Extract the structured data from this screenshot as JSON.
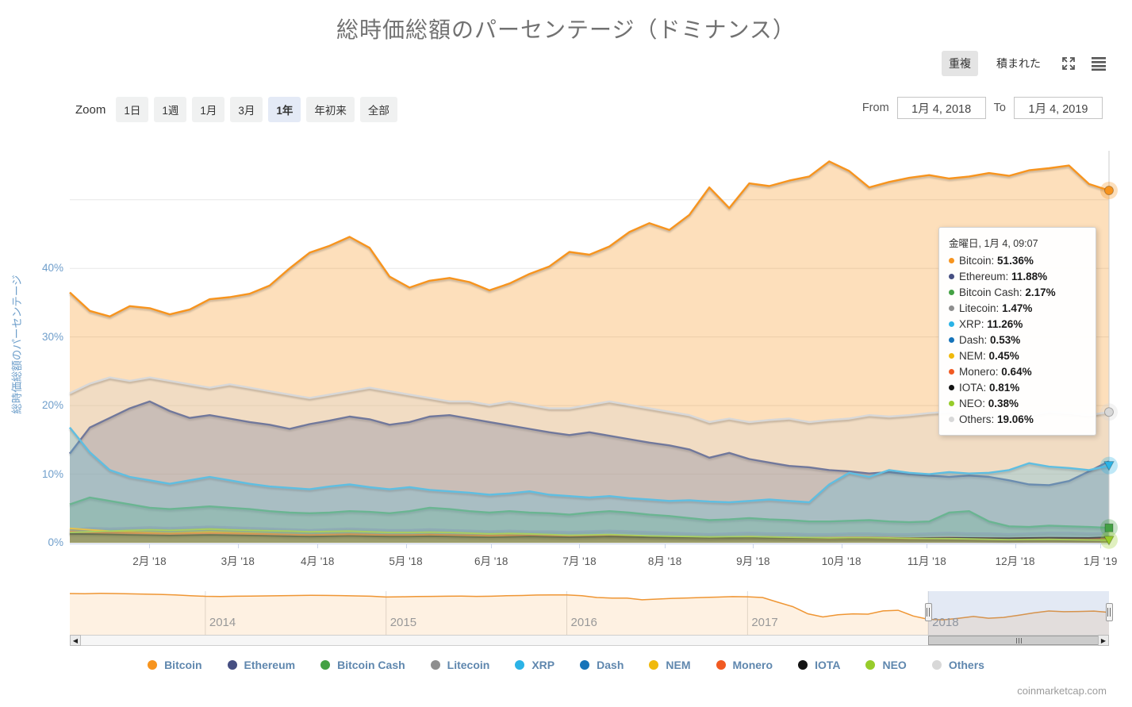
{
  "title": "総時価総額のパーセンテージ（ドミナンス）",
  "toolbar": {
    "overlap_label": "重複",
    "stacked_label": "積まれた"
  },
  "zoom": {
    "label": "Zoom",
    "options": [
      "1日",
      "1週",
      "1月",
      "3月",
      "1年",
      "年初来",
      "全部"
    ],
    "selected": "1年"
  },
  "range": {
    "from_label": "From",
    "from_value": "1月 4, 2018",
    "to_label": "To",
    "to_value": "1月 4, 2019"
  },
  "y_axis": {
    "title": "総時価総額のパーセンテージ",
    "labels": [
      "0%",
      "10%",
      "20%",
      "30%",
      "40%"
    ]
  },
  "x_axis": {
    "labels": [
      "2月 '18",
      "3月 '18",
      "4月 '18",
      "5月 '18",
      "6月 '18",
      "7月 '18",
      "8月 '18",
      "9月 '18",
      "10月 '18",
      "11月 '18",
      "12月 '18",
      "1月 '19"
    ],
    "day_offsets": [
      28,
      59,
      87,
      118,
      148,
      179,
      209,
      240,
      271,
      301,
      332,
      362
    ]
  },
  "tooltip": {
    "header": "金曜日, 1月 4, 09:07",
    "rows": [
      {
        "name": "Bitcoin",
        "value": "51.36%",
        "color": "#f7941e"
      },
      {
        "name": "Ethereum",
        "value": "11.88%",
        "color": "#464f82"
      },
      {
        "name": "Bitcoin Cash",
        "value": "2.17%",
        "color": "#44a144"
      },
      {
        "name": "Litecoin",
        "value": "1.47%",
        "color": "#8e8e8e"
      },
      {
        "name": "XRP",
        "value": "11.26%",
        "color": "#2bb3e6"
      },
      {
        "name": "Dash",
        "value": "0.53%",
        "color": "#1673b9"
      },
      {
        "name": "NEM",
        "value": "0.45%",
        "color": "#f0b90b"
      },
      {
        "name": "Monero",
        "value": "0.64%",
        "color": "#f15a22"
      },
      {
        "name": "IOTA",
        "value": "0.81%",
        "color": "#131313"
      },
      {
        "name": "NEO",
        "value": "0.38%",
        "color": "#97cc2a"
      },
      {
        "name": "Others",
        "value": "19.06%",
        "color": "#d8d8d8"
      }
    ]
  },
  "legend": [
    {
      "name": "Bitcoin",
      "color": "#f7941e"
    },
    {
      "name": "Ethereum",
      "color": "#464f82"
    },
    {
      "name": "Bitcoin Cash",
      "color": "#44a144"
    },
    {
      "name": "Litecoin",
      "color": "#8e8e8e"
    },
    {
      "name": "XRP",
      "color": "#2bb3e6"
    },
    {
      "name": "Dash",
      "color": "#1673b9"
    },
    {
      "name": "NEM",
      "color": "#f0b90b"
    },
    {
      "name": "Monero",
      "color": "#f15a22"
    },
    {
      "name": "IOTA",
      "color": "#131313"
    },
    {
      "name": "NEO",
      "color": "#97cc2a"
    },
    {
      "name": "Others",
      "color": "#d8d8d8"
    }
  ],
  "watermark": "coinmarketcap.com",
  "chart_data": {
    "type": "area",
    "mode": "overlapping",
    "unit": "%",
    "x_range": [
      "2018-01-04",
      "2019-01-04"
    ],
    "sampling": "weekly, 53 points",
    "ylim": [
      0,
      57.15
    ],
    "y_gridlines": [
      0,
      10,
      20,
      30,
      40,
      50
    ],
    "grid": true,
    "legend_position": "bottom",
    "series": [
      {
        "name": "Bitcoin",
        "color": "#f7941e",
        "marker": "circle",
        "values": [
          36.5,
          33.8,
          33.0,
          34.5,
          34.2,
          33.3,
          34.0,
          35.5,
          35.8,
          36.3,
          37.5,
          40.0,
          42.3,
          43.3,
          44.6,
          43.0,
          38.8,
          37.2,
          38.2,
          38.6,
          38.0,
          36.8,
          37.8,
          39.2,
          40.3,
          42.4,
          42.0,
          43.2,
          45.3,
          46.6,
          45.6,
          47.8,
          51.8,
          48.8,
          52.4,
          52.0,
          52.8,
          53.4,
          55.6,
          54.2,
          51.8,
          52.6,
          53.2,
          53.6,
          53.1,
          53.4,
          53.9,
          53.5,
          54.3,
          54.6,
          55.0,
          52.3,
          51.36
        ]
      },
      {
        "name": "Ethereum",
        "color": "#464f82",
        "marker": "diamond",
        "values": [
          13.0,
          16.8,
          18.2,
          19.6,
          20.6,
          19.2,
          18.2,
          18.6,
          18.1,
          17.6,
          17.2,
          16.6,
          17.3,
          17.8,
          18.4,
          18.0,
          17.2,
          17.6,
          18.4,
          18.6,
          18.1,
          17.6,
          17.1,
          16.6,
          16.1,
          15.7,
          16.1,
          15.6,
          15.1,
          14.6,
          14.2,
          13.6,
          12.4,
          13.1,
          12.2,
          11.7,
          11.2,
          11.0,
          10.6,
          10.4,
          10.1,
          10.3,
          10.0,
          9.8,
          9.6,
          9.8,
          9.6,
          9.1,
          8.5,
          8.4,
          9.0,
          10.4,
          11.88
        ]
      },
      {
        "name": "Bitcoin Cash",
        "color": "#44a144",
        "marker": "square",
        "values": [
          5.6,
          6.6,
          6.1,
          5.6,
          5.1,
          4.9,
          5.1,
          5.3,
          5.1,
          4.9,
          4.6,
          4.4,
          4.3,
          4.4,
          4.6,
          4.5,
          4.3,
          4.6,
          5.1,
          4.9,
          4.6,
          4.4,
          4.6,
          4.4,
          4.3,
          4.1,
          4.4,
          4.6,
          4.4,
          4.1,
          3.9,
          3.6,
          3.3,
          3.4,
          3.6,
          3.4,
          3.3,
          3.1,
          3.1,
          3.2,
          3.3,
          3.1,
          3.0,
          3.1,
          4.4,
          4.6,
          3.1,
          2.4,
          2.3,
          2.5,
          2.4,
          2.3,
          2.17
        ]
      },
      {
        "name": "Litecoin",
        "color": "#8e8e8e",
        "marker": "triangle",
        "values": [
          1.9,
          2.2,
          2.1,
          2.2,
          2.3,
          2.2,
          2.3,
          2.4,
          2.3,
          2.2,
          2.1,
          2.0,
          1.9,
          2.0,
          2.1,
          2.0,
          1.9,
          1.9,
          2.0,
          1.9,
          1.8,
          1.7,
          1.8,
          1.7,
          1.7,
          1.6,
          1.7,
          1.8,
          1.7,
          1.6,
          1.5,
          1.4,
          1.3,
          1.4,
          1.5,
          1.4,
          1.4,
          1.3,
          1.3,
          1.4,
          1.4,
          1.3,
          1.3,
          1.4,
          1.5,
          1.4,
          1.4,
          1.3,
          1.4,
          1.5,
          1.5,
          1.4,
          1.47
        ]
      },
      {
        "name": "XRP",
        "color": "#2bb3e6",
        "marker": "triangle-down",
        "values": [
          16.8,
          13.2,
          10.6,
          9.6,
          9.1,
          8.6,
          9.1,
          9.6,
          9.1,
          8.6,
          8.2,
          8.0,
          7.8,
          8.2,
          8.5,
          8.1,
          7.8,
          8.1,
          7.7,
          7.5,
          7.3,
          7.0,
          7.2,
          7.5,
          7.0,
          6.8,
          6.6,
          6.8,
          6.5,
          6.3,
          6.1,
          6.2,
          6.0,
          5.9,
          6.1,
          6.3,
          6.1,
          5.9,
          8.5,
          10.2,
          9.6,
          10.6,
          10.2,
          10.0,
          10.3,
          10.1,
          10.2,
          10.6,
          11.6,
          11.1,
          10.9,
          10.6,
          11.26
        ]
      },
      {
        "name": "Dash",
        "color": "#1673b9",
        "marker": "circle",
        "values": [
          1.5,
          1.4,
          1.3,
          1.25,
          1.2,
          1.15,
          1.2,
          1.25,
          1.2,
          1.15,
          1.1,
          1.05,
          1.0,
          1.05,
          1.1,
          1.05,
          1.0,
          1.0,
          1.05,
          1.0,
          0.95,
          0.9,
          0.95,
          0.9,
          0.85,
          0.8,
          0.85,
          0.9,
          0.85,
          0.8,
          0.75,
          0.7,
          0.65,
          0.7,
          0.75,
          0.7,
          0.65,
          0.6,
          0.6,
          0.65,
          0.65,
          0.6,
          0.6,
          0.6,
          0.65,
          0.6,
          0.55,
          0.5,
          0.55,
          0.6,
          0.55,
          0.5,
          0.53
        ]
      },
      {
        "name": "NEM",
        "color": "#f0b90b",
        "marker": "diamond",
        "values": [
          2.1,
          1.9,
          1.7,
          1.6,
          1.5,
          1.4,
          1.5,
          1.6,
          1.5,
          1.4,
          1.3,
          1.2,
          1.1,
          1.15,
          1.2,
          1.1,
          1.0,
          1.0,
          1.05,
          1.0,
          0.95,
          0.9,
          0.95,
          0.9,
          0.85,
          0.8,
          0.85,
          0.9,
          0.85,
          0.8,
          0.75,
          0.7,
          0.65,
          0.68,
          0.7,
          0.65,
          0.6,
          0.55,
          0.55,
          0.6,
          0.6,
          0.55,
          0.5,
          0.52,
          0.55,
          0.5,
          0.48,
          0.45,
          0.5,
          0.52,
          0.5,
          0.46,
          0.45
        ]
      },
      {
        "name": "Monero",
        "color": "#f15a22",
        "marker": "square",
        "values": [
          1.6,
          1.5,
          1.45,
          1.4,
          1.35,
          1.3,
          1.35,
          1.4,
          1.35,
          1.3,
          1.25,
          1.2,
          1.15,
          1.2,
          1.25,
          1.2,
          1.15,
          1.15,
          1.2,
          1.15,
          1.1,
          1.05,
          1.1,
          1.05,
          1.0,
          0.95,
          1.0,
          1.05,
          1.0,
          0.95,
          0.9,
          0.85,
          0.8,
          0.85,
          0.9,
          0.85,
          0.8,
          0.75,
          0.75,
          0.8,
          0.8,
          0.75,
          0.7,
          0.72,
          0.75,
          0.7,
          0.68,
          0.65,
          0.7,
          0.72,
          0.7,
          0.66,
          0.64
        ]
      },
      {
        "name": "IOTA",
        "color": "#131313",
        "marker": "triangle",
        "values": [
          1.3,
          1.25,
          1.2,
          1.15,
          1.1,
          1.05,
          1.1,
          1.15,
          1.1,
          1.05,
          1.0,
          0.95,
          0.9,
          0.95,
          1.0,
          0.95,
          0.9,
          0.9,
          0.95,
          0.9,
          0.85,
          0.8,
          0.85,
          0.9,
          0.85,
          0.8,
          0.85,
          0.9,
          0.85,
          0.8,
          0.78,
          0.75,
          0.7,
          0.73,
          0.75,
          0.72,
          0.7,
          0.68,
          0.68,
          0.72,
          0.73,
          0.7,
          0.68,
          0.7,
          0.72,
          0.7,
          0.68,
          0.66,
          0.7,
          0.73,
          0.72,
          0.7,
          0.81
        ]
      },
      {
        "name": "NEO",
        "color": "#97cc2a",
        "marker": "triangle-down",
        "values": [
          1.5,
          1.6,
          1.7,
          1.8,
          1.9,
          1.8,
          1.9,
          2.0,
          1.9,
          1.8,
          1.75,
          1.7,
          1.6,
          1.65,
          1.7,
          1.6,
          1.5,
          1.5,
          1.55,
          1.5,
          1.4,
          1.3,
          1.35,
          1.3,
          1.2,
          1.1,
          1.15,
          1.2,
          1.1,
          1.0,
          0.95,
          0.9,
          0.85,
          0.88,
          0.9,
          0.85,
          0.8,
          0.75,
          0.72,
          0.75,
          0.75,
          0.7,
          0.65,
          0.62,
          0.6,
          0.55,
          0.5,
          0.45,
          0.48,
          0.5,
          0.45,
          0.4,
          0.38
        ]
      },
      {
        "name": "Others",
        "color": "#d8d8d8",
        "marker": "circle",
        "values": [
          21.8,
          23.2,
          24.1,
          23.6,
          24.1,
          23.6,
          23.1,
          22.6,
          23.1,
          22.6,
          22.1,
          21.6,
          21.1,
          21.6,
          22.1,
          22.6,
          22.1,
          21.6,
          21.1,
          20.6,
          20.6,
          20.1,
          20.6,
          20.1,
          19.6,
          19.6,
          20.1,
          20.6,
          20.1,
          19.6,
          19.1,
          18.6,
          17.6,
          18.1,
          17.6,
          17.9,
          18.1,
          17.6,
          17.9,
          18.1,
          18.6,
          18.4,
          18.6,
          18.9,
          19.1,
          18.6,
          18.1,
          18.4,
          18.6,
          19.1,
          18.9,
          18.6,
          19.06
        ]
      }
    ],
    "end_markers": [
      "Bitcoin",
      "Bitcoin Cash",
      "XRP",
      "NEO",
      "Others"
    ],
    "navigator": {
      "series_name": "Bitcoin",
      "x_range": [
        "2013-04",
        "2019-01"
      ],
      "sampling": "monthly, 70 points",
      "ylim": [
        0,
        100
      ],
      "years": [
        {
          "label": "2014",
          "month_index": 9
        },
        {
          "label": "2015",
          "month_index": 21
        },
        {
          "label": "2016",
          "month_index": 33
        },
        {
          "label": "2017",
          "month_index": 45
        },
        {
          "label": "2018",
          "month_index": 57
        }
      ],
      "selected_from_month_index": 57,
      "values": [
        94.5,
        94.2,
        95.0,
        94.6,
        93.8,
        93.2,
        92.6,
        91.2,
        89.6,
        88.2,
        87.6,
        88.4,
        88.6,
        89.0,
        89.6,
        90.0,
        90.4,
        90.2,
        89.8,
        89.0,
        88.4,
        86.6,
        87.0,
        87.6,
        88.0,
        88.4,
        88.6,
        88.0,
        88.4,
        89.4,
        90.0,
        91.0,
        91.4,
        91.2,
        89.4,
        85.4,
        84.2,
        84.0,
        80.2,
        81.8,
        83.4,
        84.4,
        85.4,
        86.4,
        87.4,
        87.0,
        85.4,
        74.8,
        64.6,
        48.2,
        41.0,
        46.0,
        48.0,
        47.2,
        54.8,
        56.2,
        43.0,
        35.5,
        34.3,
        37.9,
        42.0,
        38.0,
        39.9,
        44.8,
        50.1,
        54.5,
        52.9,
        53.4,
        54.3,
        51.4
      ]
    }
  }
}
